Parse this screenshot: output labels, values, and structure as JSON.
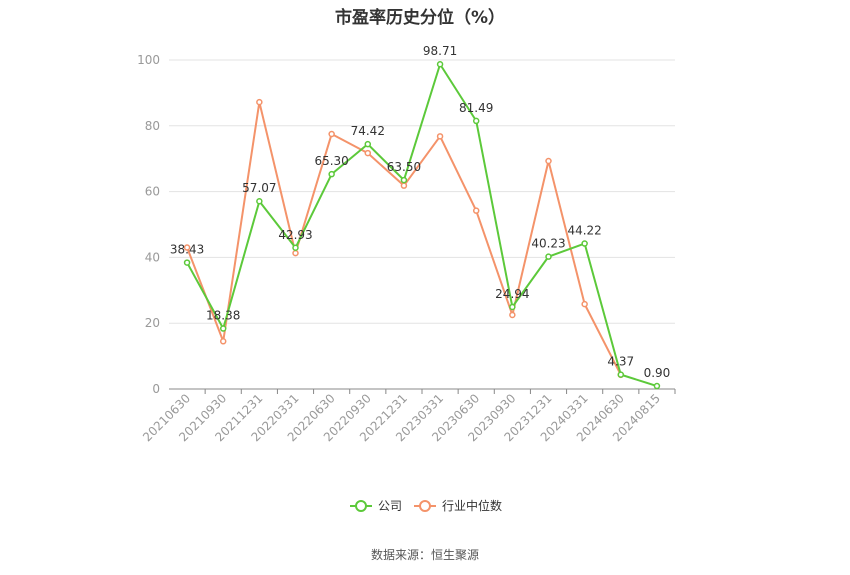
{
  "title": "市盈率历史分位（%）",
  "source": "数据来源：恒生聚源",
  "colors": {
    "company": "#5cc93a",
    "industry": "#f4936a",
    "grid": "#e3e3e3",
    "axis": "#888888",
    "tick_text": "#999999",
    "label_text": "#333333"
  },
  "chart_data": {
    "type": "line",
    "title": "市盈率历史分位（%）",
    "categories": [
      "20210630",
      "20210930",
      "20211231",
      "20220331",
      "20220630",
      "20220930",
      "20221231",
      "20230331",
      "20230630",
      "20230930",
      "20231231",
      "20240331",
      "20240630",
      "20240815"
    ],
    "ylim": [
      0,
      100
    ],
    "yticks": [
      0,
      20,
      40,
      60,
      80,
      100
    ],
    "grid": true,
    "legend_position": "bottom-center",
    "series": [
      {
        "name": "公司",
        "values": [
          38.43,
          18.38,
          57.07,
          42.93,
          65.3,
          74.42,
          63.5,
          98.71,
          81.49,
          24.94,
          40.23,
          44.22,
          4.37,
          0.9
        ],
        "labels": [
          "38.43",
          "18.38",
          "57.07",
          "42.93",
          "65.30",
          "74.42",
          "63.50",
          "98.71",
          "81.49",
          "24.94",
          "40.23",
          "44.22",
          "4.37",
          "0.90"
        ]
      },
      {
        "name": "行业中位数",
        "values": [
          43.0,
          14.5,
          87.2,
          41.3,
          77.5,
          71.7,
          61.8,
          76.8,
          54.2,
          22.5,
          69.3,
          25.8,
          4.3,
          null
        ]
      }
    ]
  }
}
